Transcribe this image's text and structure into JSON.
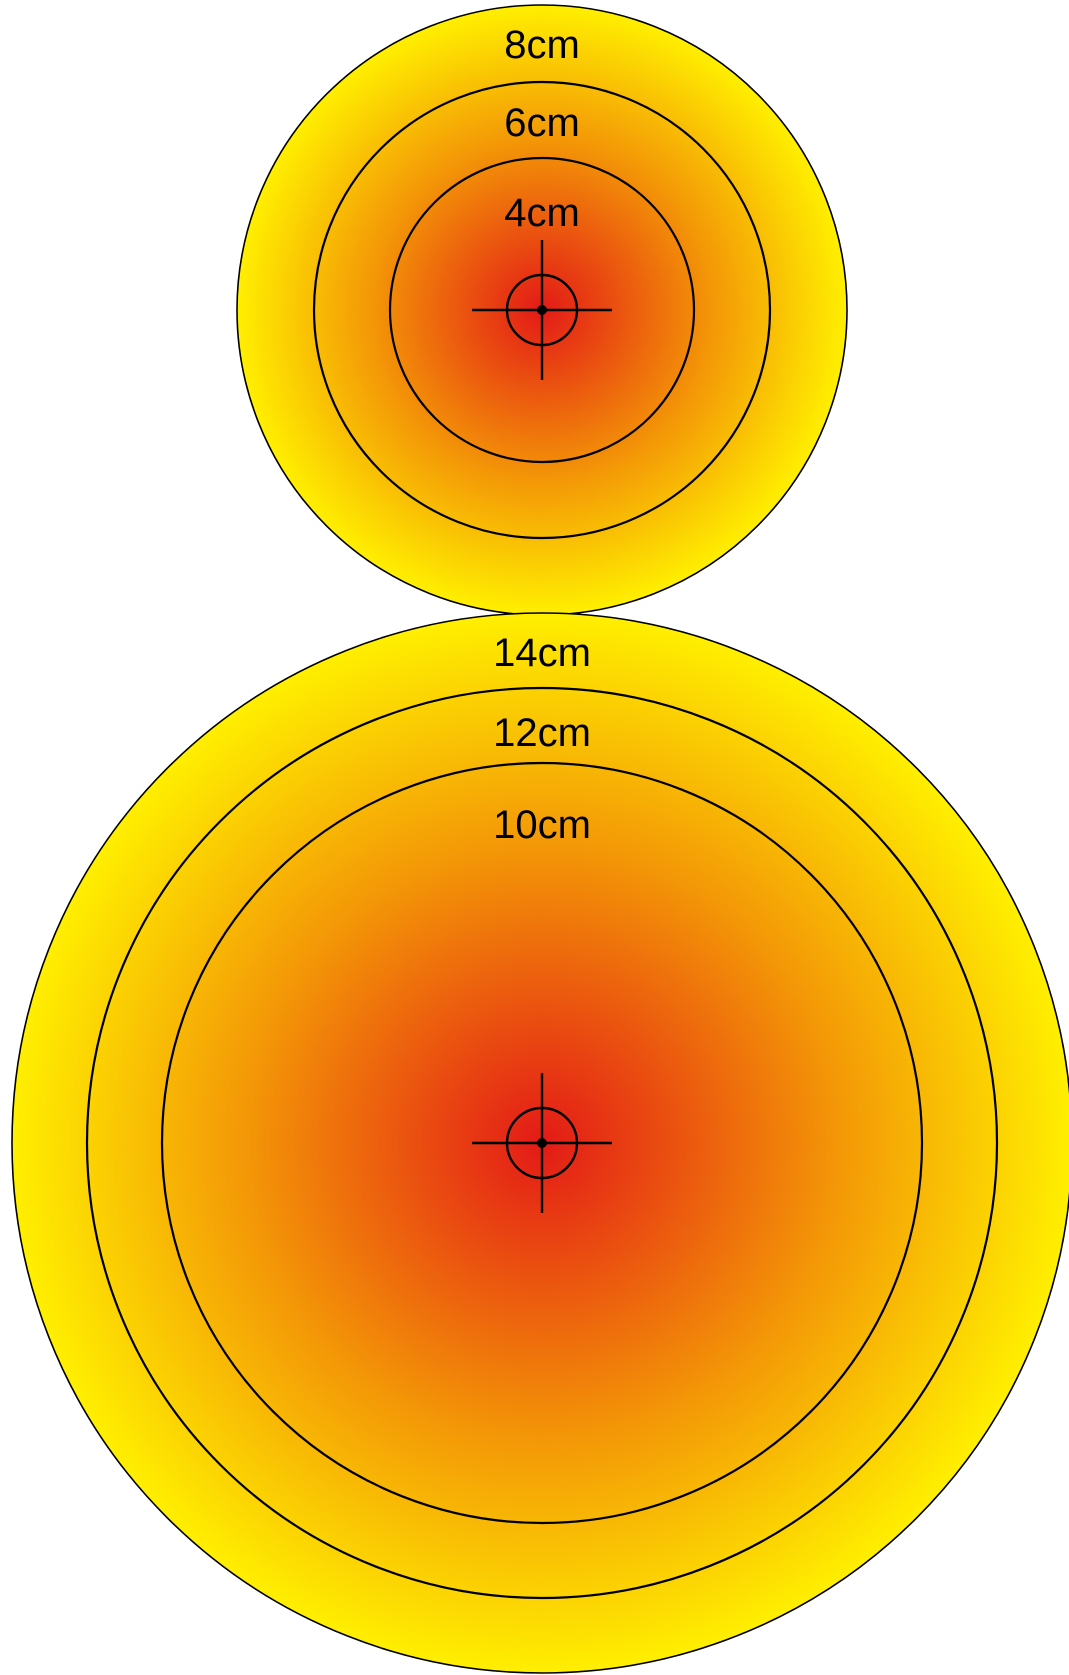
{
  "colors": {
    "center": "#e31a17",
    "middle": "#f39507",
    "edge": "#ffef00",
    "line": "#000000"
  },
  "targets": [
    {
      "name": "small",
      "rings": [
        {
          "label": "8cm"
        },
        {
          "label": "6cm"
        },
        {
          "label": "4cm"
        }
      ]
    },
    {
      "name": "large",
      "rings": [
        {
          "label": "14cm"
        },
        {
          "label": "12cm"
        },
        {
          "label": "10cm"
        }
      ]
    }
  ],
  "center_marker_icon": "crosshair-icon"
}
